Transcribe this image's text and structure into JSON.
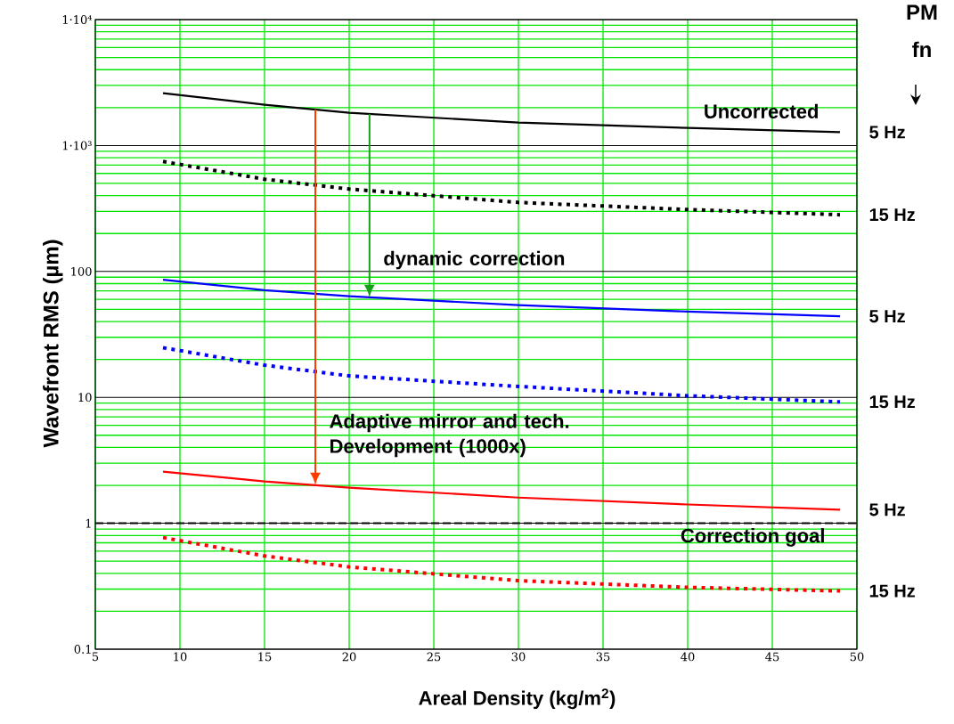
{
  "chart_data": {
    "type": "line",
    "xlabel": "Areal Density (kg/m$^{2}$)",
    "ylabel": "Wavefront  RMS (µm)",
    "legend_title": "PM fn",
    "log": "y",
    "grid": true,
    "x": [
      9,
      15,
      20,
      30,
      40,
      49
    ],
    "xlim": [
      5,
      50
    ],
    "xticks": [
      5,
      10,
      15,
      20,
      25,
      30,
      35,
      40,
      45,
      50
    ],
    "ylim": [
      0.1,
      10000
    ],
    "yticks": [
      0.1,
      1,
      10,
      100,
      {
        "value": 1000,
        "label": "1·10³"
      },
      {
        "value": 10000,
        "label": "1·10⁴"
      }
    ],
    "series": [
      {
        "name": "5 Hz",
        "color": "#000000",
        "line_style": "solid",
        "values": [
          2600,
          2110,
          1820,
          1520,
          1380,
          1275
        ]
      },
      {
        "name": "15 Hz",
        "color": "#000000",
        "line_style": "dotted",
        "values": [
          747,
          540,
          451,
          353,
          310,
          282
        ]
      },
      {
        "name": "5 Hz",
        "color": "#0000ff",
        "line_style": "solid",
        "values": [
          86,
          71,
          63.5,
          54,
          48,
          44
        ]
      },
      {
        "name": "15 Hz",
        "color": "#0000ff",
        "line_style": "dotted",
        "values": [
          24.8,
          18,
          14.8,
          12.2,
          10.3,
          9.2
        ]
      },
      {
        "name": "5 Hz",
        "color": "#ff0000",
        "line_style": "solid",
        "values": [
          2.57,
          2.15,
          1.92,
          1.6,
          1.41,
          1.28
        ]
      },
      {
        "name": "15 Hz",
        "color": "#ff0000",
        "line_style": "dotted",
        "values": [
          0.77,
          0.55,
          0.45,
          0.35,
          0.31,
          0.29
        ]
      }
    ],
    "ref_lines": [
      {
        "axis": "y",
        "value": 1,
        "label": "Correction goal",
        "color": "#000000",
        "line_style": "dashed"
      }
    ],
    "annotations": [
      "Uncorrected",
      {
        "text": "dynamic correction",
        "x": 21.2,
        "y": 62.3
      },
      {
        "text": "Adaptive mirror and tech. Development (1000x)",
        "x": 18,
        "y": 2.01
      }
    ]
  }
}
